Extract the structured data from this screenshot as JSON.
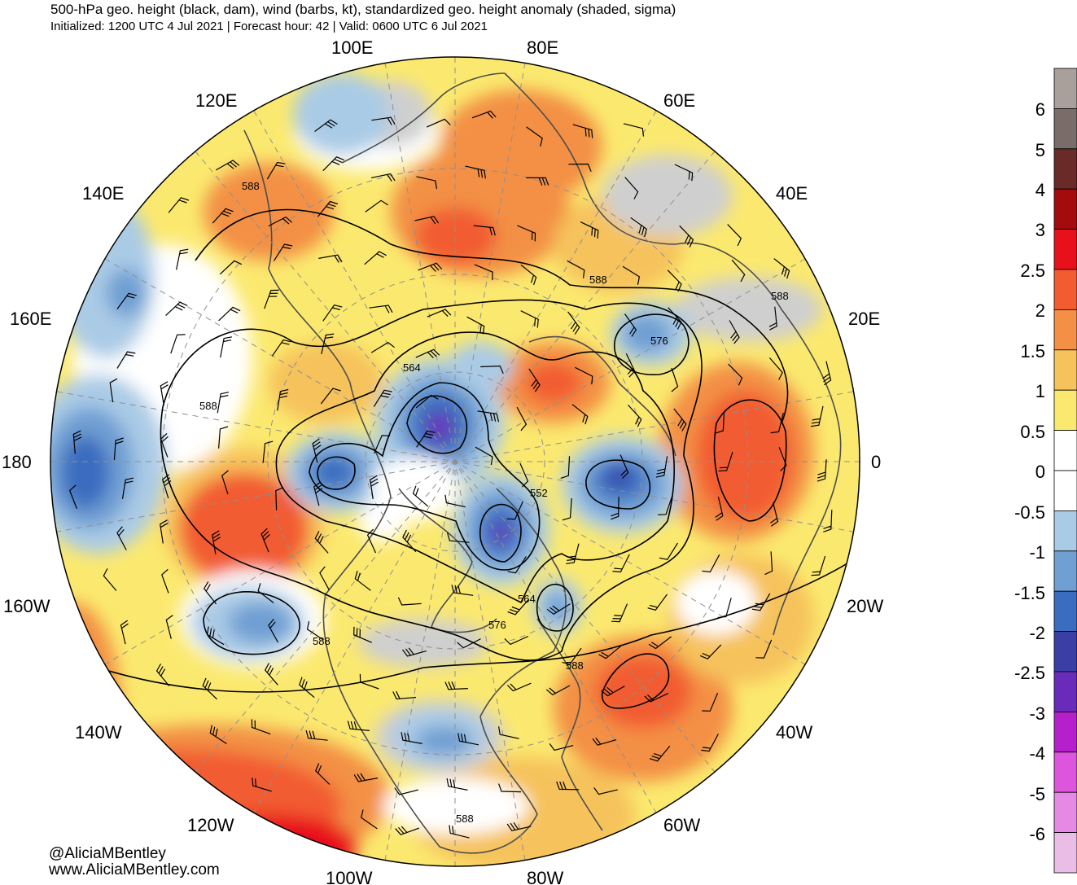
{
  "header": {
    "title": "500-hPa geo. height (black, dam), wind (barbs, kt), standardized geo. height anomaly (shaded, sigma)",
    "subtitle": "Initialized: 1200 UTC 4 Jul 2021 | Forecast hour: 42 | Valid: 0600 UTC 6 Jul 2021"
  },
  "map": {
    "projection": "north-polar-stereographic",
    "longitude_labels": [
      "100E",
      "80E",
      "120E",
      "60E",
      "140E",
      "40E",
      "160E",
      "20E",
      "180",
      "0",
      "160W",
      "20W",
      "140W",
      "40W",
      "120W",
      "60W",
      "100W",
      "80W"
    ],
    "contour_labels": [
      "588",
      "588",
      "588",
      "588",
      "588",
      "564",
      "576",
      "552",
      "564",
      "576",
      "588",
      "588"
    ],
    "colors": {
      "land_outline": "#4d4d4d",
      "grid": "#9a9a9a",
      "neutral_land": "#cfcfcf"
    }
  },
  "colorbar": {
    "tick_labels": [
      "6",
      "5",
      "4",
      "3",
      "2.5",
      "2",
      "1.5",
      "1",
      "0.5",
      "0",
      "-0.5",
      "-1",
      "-1.5",
      "-2",
      "-2.5",
      "-3",
      "-4",
      "-5",
      "-6"
    ],
    "colors": [
      "#a9a09c",
      "#7a6c69",
      "#6a2a28",
      "#a30b0d",
      "#e8101a",
      "#f25c30",
      "#f39045",
      "#f6c25c",
      "#fbe96f",
      "#ffffff",
      "#ffffff",
      "#aacbe6",
      "#6f9fd3",
      "#3a6cbf",
      "#3b3fa5",
      "#6a2bbb",
      "#b520cc",
      "#dc55dc",
      "#e689e4",
      "#e9bde6"
    ]
  },
  "credits": {
    "handle": "@AliciaMBentley",
    "website": "www.AliciaMBentley.com"
  }
}
